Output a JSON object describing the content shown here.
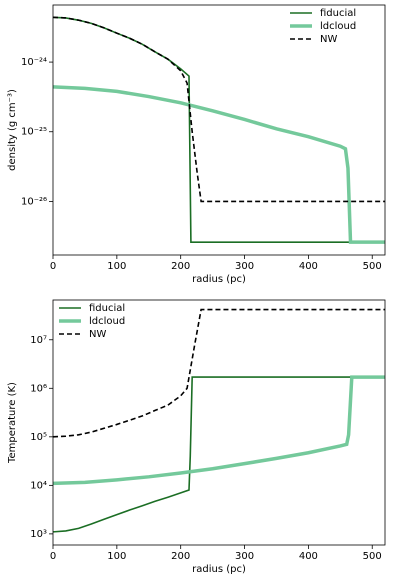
{
  "chart_data": [
    {
      "type": "line",
      "xlabel": "radius (pc)",
      "ylabel": "density (g cm⁻³)",
      "yscale": "log",
      "legend": "upper right",
      "xlim": [
        0,
        520
      ],
      "xticks": [
        0,
        100,
        200,
        300,
        400,
        500
      ],
      "ylim": [
        1.7e-27,
        6.6e-24
      ],
      "yticks": [
        {
          "value": 1e-26,
          "label": "10⁻²⁶"
        },
        {
          "value": 1e-25,
          "label": "10⁻²⁵"
        },
        {
          "value": 1e-24,
          "label": "10⁻²⁴"
        }
      ],
      "series": [
        {
          "name": "fiducial",
          "color": "#1b6e24",
          "linewidth": 1.6,
          "linestyle": "solid",
          "x": [
            0,
            20,
            40,
            60,
            80,
            100,
            120,
            140,
            160,
            180,
            200,
            213,
            216,
            520
          ],
          "values": [
            4.4e-24,
            4.3e-24,
            4e-24,
            3.6e-24,
            3.1e-24,
            2.6e-24,
            2.2e-24,
            1.8e-24,
            1.4e-24,
            1.1e-24,
            8e-25,
            6.3e-25,
            2.6e-27,
            2.6e-27
          ]
        },
        {
          "name": "ldcloud",
          "color": "#74c99b",
          "linewidth": 3.5,
          "linestyle": "solid",
          "x": [
            0,
            50,
            100,
            150,
            200,
            250,
            300,
            350,
            400,
            450,
            458,
            462,
            466,
            520
          ],
          "values": [
            4.4e-25,
            4.2e-25,
            3.8e-25,
            3.2e-25,
            2.6e-25,
            2e-25,
            1.5e-25,
            1.1e-25,
            8.5e-26,
            6.2e-26,
            5.7e-26,
            3e-26,
            2.6e-27,
            2.6e-27
          ]
        },
        {
          "name": "NW",
          "color": "#000000",
          "linewidth": 1.6,
          "linestyle": "dashed",
          "x": [
            0,
            20,
            40,
            60,
            80,
            100,
            120,
            140,
            160,
            180,
            200,
            210,
            218,
            226,
            232,
            520
          ],
          "values": [
            4.4e-24,
            4.3e-24,
            4e-24,
            3.6e-24,
            3.1e-24,
            2.6e-24,
            2.2e-24,
            1.8e-24,
            1.4e-24,
            1.1e-24,
            7.5e-25,
            5e-25,
            1e-25,
            2.5e-26,
            1e-26,
            1e-26
          ]
        }
      ]
    },
    {
      "type": "line",
      "xlabel": "radius (pc)",
      "ylabel": "Temperature (K)",
      "yscale": "log",
      "legend": "upper left",
      "xlim": [
        0,
        520
      ],
      "xticks": [
        0,
        100,
        200,
        300,
        400,
        500
      ],
      "ylim": [
        590,
        66000000.0
      ],
      "yticks": [
        {
          "value": 1000,
          "label": "10³"
        },
        {
          "value": 10000,
          "label": "10⁴"
        },
        {
          "value": 100000,
          "label": "10⁵"
        },
        {
          "value": 1000000,
          "label": "10⁶"
        },
        {
          "value": 10000000,
          "label": "10⁷"
        }
      ],
      "series": [
        {
          "name": "fiducial",
          "color": "#1b6e24",
          "linewidth": 1.6,
          "linestyle": "solid",
          "x": [
            0,
            20,
            40,
            60,
            80,
            100,
            120,
            140,
            160,
            180,
            200,
            213,
            215,
            218,
            520
          ],
          "values": [
            1100,
            1150,
            1300,
            1600,
            2000,
            2500,
            3100,
            3800,
            4700,
            5700,
            7000,
            8000,
            40000,
            1700000,
            1700000
          ]
        },
        {
          "name": "ldcloud",
          "color": "#74c99b",
          "linewidth": 3.5,
          "linestyle": "solid",
          "x": [
            0,
            50,
            100,
            150,
            200,
            250,
            300,
            350,
            400,
            450,
            460,
            463,
            468,
            520
          ],
          "values": [
            11000,
            11500,
            13000,
            15000,
            18000,
            22000,
            28000,
            36000,
            47000,
            65000,
            70000,
            110000,
            1700000,
            1700000
          ]
        },
        {
          "name": "NW",
          "color": "#000000",
          "linewidth": 1.6,
          "linestyle": "dashed",
          "x": [
            0,
            20,
            40,
            60,
            80,
            100,
            120,
            140,
            160,
            180,
            200,
            210,
            222,
            232,
            520
          ],
          "values": [
            100000,
            103000,
            110000,
            125000,
            150000,
            180000,
            220000,
            270000,
            350000,
            450000,
            700000,
            1000000,
            8000000,
            42000000,
            42000000
          ]
        }
      ]
    }
  ]
}
